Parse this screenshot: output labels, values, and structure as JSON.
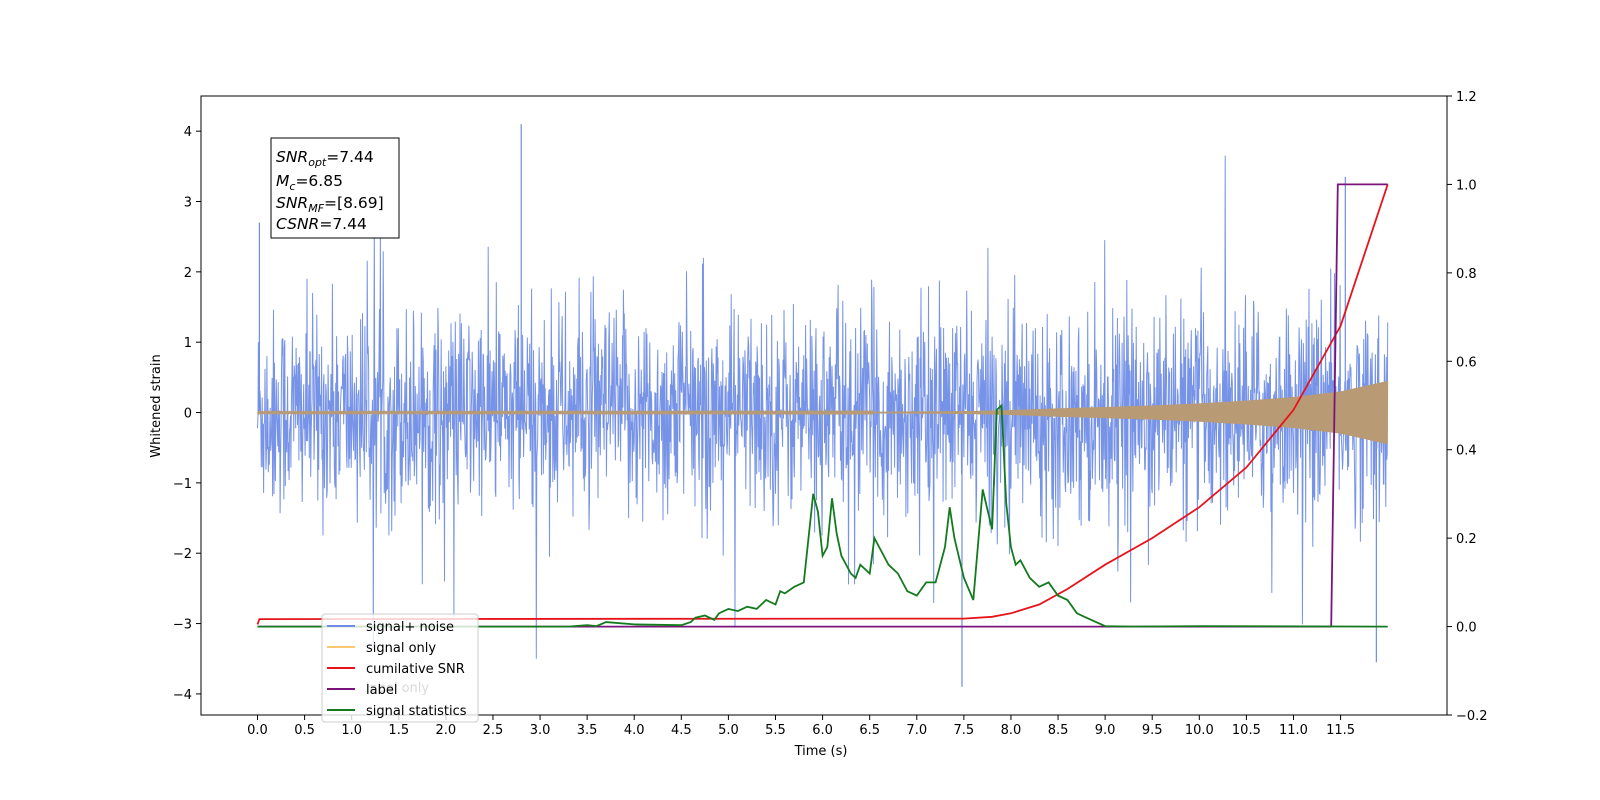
{
  "chart_data": {
    "type": "line",
    "xlabel": "Time (s)",
    "ylabel_left": "Whitened strain",
    "ylabel_right": "",
    "xlim": [
      -0.6,
      12.63
    ],
    "ylim_left": [
      -4.3,
      4.5
    ],
    "ylim_right": [
      -0.2,
      1.2
    ],
    "x_ticks": [
      0.0,
      0.5,
      1.0,
      1.5,
      2.0,
      2.5,
      3.0,
      3.5,
      4.0,
      4.5,
      5.0,
      5.5,
      6.0,
      6.5,
      7.0,
      7.5,
      8.0,
      8.5,
      9.0,
      9.5,
      10.0,
      10.5,
      11.0,
      11.5
    ],
    "x_tick_labels": [
      "0.0",
      "0.5",
      "1.0",
      "1.5",
      "2.0",
      "2.5",
      "3.0",
      "3.5",
      "4.0",
      "4.5",
      "5.0",
      "5.5",
      "6.0",
      "6.5",
      "7.0",
      "7.5",
      "8.0",
      "8.5",
      "9.0",
      "9.5",
      "10.0",
      "10.5",
      "11.0",
      "11.5"
    ],
    "y_left_ticks": [
      -4,
      -3,
      -2,
      -1,
      0,
      1,
      2,
      3,
      4
    ],
    "y_left_tick_labels": [
      "−4",
      "−3",
      "−2",
      "−1",
      "0",
      "1",
      "2",
      "3",
      "4"
    ],
    "y_right_ticks": [
      -0.2,
      0.0,
      0.2,
      0.4,
      0.6,
      0.8,
      1.0,
      1.2
    ],
    "y_right_tick_labels": [
      "−0.2",
      "0.0",
      "0.2",
      "0.4",
      "0.6",
      "0.8",
      "1.0",
      "1.2"
    ],
    "grid": false,
    "legend_position": "lower-left",
    "series": [
      {
        "name": "signal+ noise",
        "axis": "left",
        "color": "#6f8de6",
        "description_points_note": "dense noise trace from t=0 to t=12, mostly within -1.5 to 1.5 with spikes",
        "envelope_extremes": {
          "x": [
            0.02,
            2.8,
            7.48,
            11.55,
            11.88
          ],
          "y": [
            2.7,
            4.1,
            -3.9,
            3.35,
            -3.55
          ]
        }
      },
      {
        "name": "signal only",
        "axis": "left",
        "color": "#ffa500",
        "x": [
          0,
          6.5,
          7.5,
          8.0,
          8.5,
          9.0,
          9.5,
          10.0,
          10.5,
          11.0,
          11.5,
          12.0
        ],
        "amplitude": [
          0.008,
          0.01,
          0.02,
          0.035,
          0.06,
          0.08,
          0.1,
          0.13,
          0.17,
          0.22,
          0.3,
          0.45
        ]
      },
      {
        "name": "cumilative SNR",
        "axis": "right",
        "color": "#e8131a",
        "x": [
          0,
          0.02,
          7.5,
          7.8,
          8.0,
          8.3,
          8.6,
          9.0,
          9.5,
          10.0,
          10.5,
          11.0,
          11.5,
          12.0
        ],
        "y": [
          0.005,
          0.017,
          0.018,
          0.022,
          0.03,
          0.05,
          0.085,
          0.14,
          0.2,
          0.27,
          0.36,
          0.49,
          0.68,
          1.0
        ]
      },
      {
        "name": "label",
        "axis": "right",
        "color": "#7a147a",
        "x": [
          0,
          11.4,
          11.47,
          12.0
        ],
        "y": [
          0,
          0,
          1.0,
          1.0
        ]
      },
      {
        "name": "label only",
        "axis": "right",
        "color": "#7a147a",
        "x": [],
        "y": []
      },
      {
        "name": "signal statistics",
        "axis": "right",
        "color": "#147a1e",
        "x": [
          0,
          3.3,
          3.5,
          3.6,
          3.7,
          4.0,
          4.5,
          4.6,
          4.65,
          4.75,
          4.85,
          4.9,
          5.0,
          5.1,
          5.2,
          5.3,
          5.4,
          5.5,
          5.55,
          5.6,
          5.7,
          5.8,
          5.85,
          5.9,
          5.95,
          6.0,
          6.05,
          6.1,
          6.15,
          6.2,
          6.3,
          6.35,
          6.4,
          6.5,
          6.55,
          6.6,
          6.7,
          6.8,
          6.9,
          7.0,
          7.1,
          7.2,
          7.3,
          7.35,
          7.4,
          7.5,
          7.6,
          7.7,
          7.8,
          7.85,
          7.9,
          7.95,
          8.0,
          8.05,
          8.1,
          8.2,
          8.3,
          8.4,
          8.5,
          8.6,
          8.7,
          8.8,
          9.0,
          9.3,
          10.0,
          12.0
        ],
        "y": [
          0,
          0,
          0.003,
          0.001,
          0.01,
          0.005,
          0.003,
          0.01,
          0.02,
          0.025,
          0.015,
          0.03,
          0.04,
          0.035,
          0.045,
          0.04,
          0.06,
          0.05,
          0.08,
          0.075,
          0.09,
          0.1,
          0.2,
          0.3,
          0.26,
          0.16,
          0.18,
          0.29,
          0.21,
          0.16,
          0.12,
          0.11,
          0.14,
          0.12,
          0.2,
          0.18,
          0.14,
          0.12,
          0.08,
          0.07,
          0.1,
          0.1,
          0.18,
          0.27,
          0.2,
          0.11,
          0.06,
          0.31,
          0.22,
          0.49,
          0.5,
          0.28,
          0.18,
          0.14,
          0.15,
          0.11,
          0.09,
          0.1,
          0.07,
          0.06,
          0.03,
          0.02,
          0.001,
          0.0,
          0.001,
          0.0
        ]
      }
    ],
    "annotation": {
      "lines": [
        {
          "sym": "SNR",
          "sub": "opt",
          "text": "=7.44"
        },
        {
          "sym": "M",
          "sub": "c",
          "text": "=6.85"
        },
        {
          "sym": "SNR",
          "sub": "MF",
          "text": "=[8.69]"
        },
        {
          "sym": "CSNR",
          "sub": "",
          "text": "=7.44"
        }
      ]
    },
    "legend": [
      {
        "label": "signal+ noise",
        "color": "#6f8de6"
      },
      {
        "label": "signal only",
        "color": "#ffc772"
      },
      {
        "label": "cumilative SNR",
        "color": "#e8131a"
      },
      {
        "label": "label",
        "color": "#7a147a"
      },
      {
        "label": "signal statistics",
        "color": "#147a1e"
      }
    ],
    "legend_hidden_text": "label only"
  }
}
